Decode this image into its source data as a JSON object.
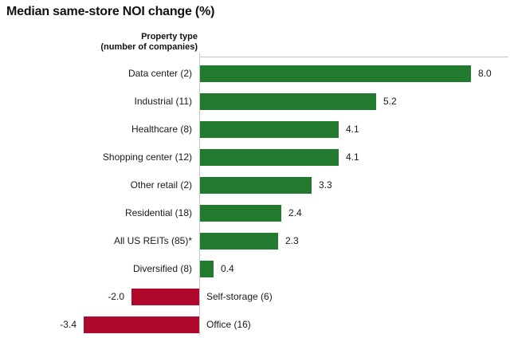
{
  "chart_data": {
    "type": "bar",
    "orientation": "horizontal",
    "title": "Median same-store NOI change (%)",
    "axis_header": [
      "Property type",
      "(number of companies)"
    ],
    "categories": [
      "Data center (2)",
      "Industrial (11)",
      "Healthcare (8)",
      "Shopping center (12)",
      "Other retail (2)",
      "Residential (18)",
      "All US REITs (85)*",
      "Diversified (8)",
      "Self-storage (6)",
      "Office (16)"
    ],
    "values": [
      8.0,
      5.2,
      4.1,
      4.1,
      3.3,
      2.4,
      2.3,
      0.4,
      -2.0,
      -3.4
    ],
    "value_labels": [
      "8.0",
      "5.2",
      "4.1",
      "4.1",
      "3.3",
      "2.4",
      "2.3",
      "0.4",
      "-2.0",
      "-3.4"
    ],
    "colors": {
      "positive": "#217a2e",
      "negative": "#b0082d"
    },
    "xlim": [
      -3.4,
      8.0
    ],
    "grid": false,
    "legend": false
  }
}
